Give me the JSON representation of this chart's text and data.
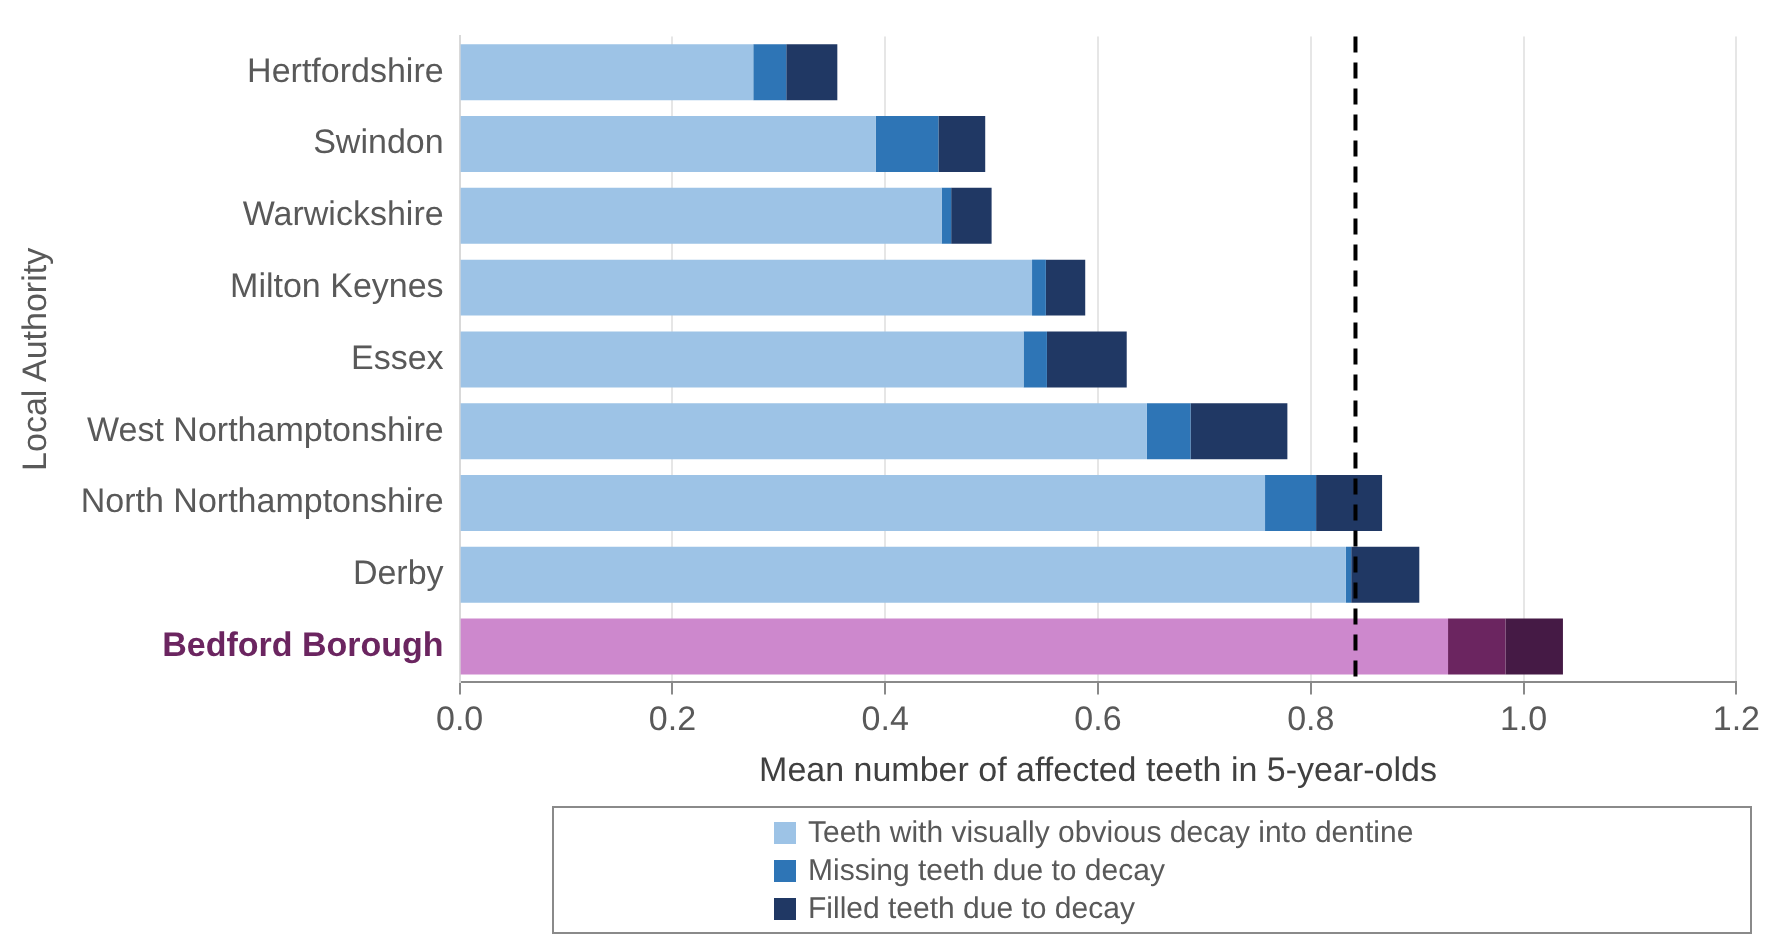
{
  "chart_data": {
    "type": "bar",
    "orientation": "horizontal",
    "stacked": true,
    "xlabel": "Mean number of affected teeth in 5-year-olds",
    "ylabel": "Local Authority",
    "categories": [
      "Hertfordshire",
      "Swindon",
      "Warwickshire",
      "Milton Keynes",
      "Essex",
      "West Northamptonshire",
      "North Northamptonshire",
      "Derby",
      "Bedford Borough"
    ],
    "series": [
      {
        "name": "Teeth with visually obvious decay into dentine",
        "color": "#9dc3e6",
        "colors": [
          "#9dc3e6",
          "#9dc3e6",
          "#9dc3e6",
          "#9dc3e6",
          "#9dc3e6",
          "#9dc3e6",
          "#9dc3e6",
          "#9dc3e6",
          "#cd88cd"
        ],
        "values": [
          0.276,
          0.391,
          0.453,
          0.538,
          0.53,
          0.646,
          0.757,
          0.833,
          0.929
        ]
      },
      {
        "name": "Missing teeth due to decay",
        "color": "#2e75b6",
        "colors": [
          "#2e75b6",
          "#2e75b6",
          "#2e75b6",
          "#2e75b6",
          "#2e75b6",
          "#2e75b6",
          "#2e75b6",
          "#2e75b6",
          "#6b2560"
        ],
        "values": [
          0.031,
          0.059,
          0.009,
          0.013,
          0.022,
          0.041,
          0.048,
          0.005,
          0.054
        ]
      },
      {
        "name": "Filled teeth due to decay",
        "color": "#203864",
        "colors": [
          "#203864",
          "#203864",
          "#203864",
          "#203864",
          "#203864",
          "#203864",
          "#203864",
          "#203864",
          "#451a45"
        ],
        "values": [
          0.048,
          0.044,
          0.038,
          0.037,
          0.075,
          0.091,
          0.062,
          0.064,
          0.054
        ]
      }
    ],
    "xlim": [
      0,
      1.2
    ],
    "xticks": [
      {
        "value": 0,
        "label": "0.0"
      },
      {
        "value": 0.2,
        "label": "0.2"
      },
      {
        "value": 0.4,
        "label": "0.4"
      },
      {
        "value": 0.6,
        "label": "0.6"
      },
      {
        "value": 0.8,
        "label": "0.8"
      },
      {
        "value": 1,
        "label": "1.0"
      },
      {
        "value": 1.2,
        "label": "1.2"
      }
    ],
    "ref_lines": [
      {
        "axis": "x",
        "value": 0.842,
        "color": "#000000",
        "line_style": "dashed"
      }
    ],
    "grid": "x",
    "legend": "bottom"
  }
}
